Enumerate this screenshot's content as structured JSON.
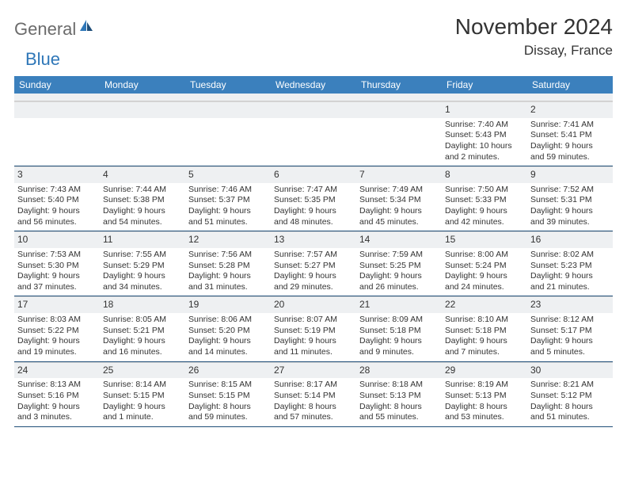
{
  "logo": {
    "general": "General",
    "blue": "Blue"
  },
  "title": "November 2024",
  "location": "Dissay, France",
  "weekdays": [
    "Sunday",
    "Monday",
    "Tuesday",
    "Wednesday",
    "Thursday",
    "Friday",
    "Saturday"
  ],
  "colors": {
    "header_bg": "#3b80bd",
    "accent_dark": "#1f4e79",
    "daynum_bg": "#eef0f2",
    "logo_blue": "#2f77b8",
    "logo_grey": "#6b6b6b"
  },
  "weeks": [
    [
      {
        "n": "",
        "empty": true
      },
      {
        "n": "",
        "empty": true
      },
      {
        "n": "",
        "empty": true
      },
      {
        "n": "",
        "empty": true
      },
      {
        "n": "",
        "empty": true
      },
      {
        "n": "1",
        "sunrise": "Sunrise: 7:40 AM",
        "sunset": "Sunset: 5:43 PM",
        "dl1": "Daylight: 10 hours",
        "dl2": "and 2 minutes."
      },
      {
        "n": "2",
        "sunrise": "Sunrise: 7:41 AM",
        "sunset": "Sunset: 5:41 PM",
        "dl1": "Daylight: 9 hours",
        "dl2": "and 59 minutes."
      }
    ],
    [
      {
        "n": "3",
        "sunrise": "Sunrise: 7:43 AM",
        "sunset": "Sunset: 5:40 PM",
        "dl1": "Daylight: 9 hours",
        "dl2": "and 56 minutes."
      },
      {
        "n": "4",
        "sunrise": "Sunrise: 7:44 AM",
        "sunset": "Sunset: 5:38 PM",
        "dl1": "Daylight: 9 hours",
        "dl2": "and 54 minutes."
      },
      {
        "n": "5",
        "sunrise": "Sunrise: 7:46 AM",
        "sunset": "Sunset: 5:37 PM",
        "dl1": "Daylight: 9 hours",
        "dl2": "and 51 minutes."
      },
      {
        "n": "6",
        "sunrise": "Sunrise: 7:47 AM",
        "sunset": "Sunset: 5:35 PM",
        "dl1": "Daylight: 9 hours",
        "dl2": "and 48 minutes."
      },
      {
        "n": "7",
        "sunrise": "Sunrise: 7:49 AM",
        "sunset": "Sunset: 5:34 PM",
        "dl1": "Daylight: 9 hours",
        "dl2": "and 45 minutes."
      },
      {
        "n": "8",
        "sunrise": "Sunrise: 7:50 AM",
        "sunset": "Sunset: 5:33 PM",
        "dl1": "Daylight: 9 hours",
        "dl2": "and 42 minutes."
      },
      {
        "n": "9",
        "sunrise": "Sunrise: 7:52 AM",
        "sunset": "Sunset: 5:31 PM",
        "dl1": "Daylight: 9 hours",
        "dl2": "and 39 minutes."
      }
    ],
    [
      {
        "n": "10",
        "sunrise": "Sunrise: 7:53 AM",
        "sunset": "Sunset: 5:30 PM",
        "dl1": "Daylight: 9 hours",
        "dl2": "and 37 minutes."
      },
      {
        "n": "11",
        "sunrise": "Sunrise: 7:55 AM",
        "sunset": "Sunset: 5:29 PM",
        "dl1": "Daylight: 9 hours",
        "dl2": "and 34 minutes."
      },
      {
        "n": "12",
        "sunrise": "Sunrise: 7:56 AM",
        "sunset": "Sunset: 5:28 PM",
        "dl1": "Daylight: 9 hours",
        "dl2": "and 31 minutes."
      },
      {
        "n": "13",
        "sunrise": "Sunrise: 7:57 AM",
        "sunset": "Sunset: 5:27 PM",
        "dl1": "Daylight: 9 hours",
        "dl2": "and 29 minutes."
      },
      {
        "n": "14",
        "sunrise": "Sunrise: 7:59 AM",
        "sunset": "Sunset: 5:25 PM",
        "dl1": "Daylight: 9 hours",
        "dl2": "and 26 minutes."
      },
      {
        "n": "15",
        "sunrise": "Sunrise: 8:00 AM",
        "sunset": "Sunset: 5:24 PM",
        "dl1": "Daylight: 9 hours",
        "dl2": "and 24 minutes."
      },
      {
        "n": "16",
        "sunrise": "Sunrise: 8:02 AM",
        "sunset": "Sunset: 5:23 PM",
        "dl1": "Daylight: 9 hours",
        "dl2": "and 21 minutes."
      }
    ],
    [
      {
        "n": "17",
        "sunrise": "Sunrise: 8:03 AM",
        "sunset": "Sunset: 5:22 PM",
        "dl1": "Daylight: 9 hours",
        "dl2": "and 19 minutes."
      },
      {
        "n": "18",
        "sunrise": "Sunrise: 8:05 AM",
        "sunset": "Sunset: 5:21 PM",
        "dl1": "Daylight: 9 hours",
        "dl2": "and 16 minutes."
      },
      {
        "n": "19",
        "sunrise": "Sunrise: 8:06 AM",
        "sunset": "Sunset: 5:20 PM",
        "dl1": "Daylight: 9 hours",
        "dl2": "and 14 minutes."
      },
      {
        "n": "20",
        "sunrise": "Sunrise: 8:07 AM",
        "sunset": "Sunset: 5:19 PM",
        "dl1": "Daylight: 9 hours",
        "dl2": "and 11 minutes."
      },
      {
        "n": "21",
        "sunrise": "Sunrise: 8:09 AM",
        "sunset": "Sunset: 5:18 PM",
        "dl1": "Daylight: 9 hours",
        "dl2": "and 9 minutes."
      },
      {
        "n": "22",
        "sunrise": "Sunrise: 8:10 AM",
        "sunset": "Sunset: 5:18 PM",
        "dl1": "Daylight: 9 hours",
        "dl2": "and 7 minutes."
      },
      {
        "n": "23",
        "sunrise": "Sunrise: 8:12 AM",
        "sunset": "Sunset: 5:17 PM",
        "dl1": "Daylight: 9 hours",
        "dl2": "and 5 minutes."
      }
    ],
    [
      {
        "n": "24",
        "sunrise": "Sunrise: 8:13 AM",
        "sunset": "Sunset: 5:16 PM",
        "dl1": "Daylight: 9 hours",
        "dl2": "and 3 minutes."
      },
      {
        "n": "25",
        "sunrise": "Sunrise: 8:14 AM",
        "sunset": "Sunset: 5:15 PM",
        "dl1": "Daylight: 9 hours",
        "dl2": "and 1 minute."
      },
      {
        "n": "26",
        "sunrise": "Sunrise: 8:15 AM",
        "sunset": "Sunset: 5:15 PM",
        "dl1": "Daylight: 8 hours",
        "dl2": "and 59 minutes."
      },
      {
        "n": "27",
        "sunrise": "Sunrise: 8:17 AM",
        "sunset": "Sunset: 5:14 PM",
        "dl1": "Daylight: 8 hours",
        "dl2": "and 57 minutes."
      },
      {
        "n": "28",
        "sunrise": "Sunrise: 8:18 AM",
        "sunset": "Sunset: 5:13 PM",
        "dl1": "Daylight: 8 hours",
        "dl2": "and 55 minutes."
      },
      {
        "n": "29",
        "sunrise": "Sunrise: 8:19 AM",
        "sunset": "Sunset: 5:13 PM",
        "dl1": "Daylight: 8 hours",
        "dl2": "and 53 minutes."
      },
      {
        "n": "30",
        "sunrise": "Sunrise: 8:21 AM",
        "sunset": "Sunset: 5:12 PM",
        "dl1": "Daylight: 8 hours",
        "dl2": "and 51 minutes."
      }
    ]
  ]
}
